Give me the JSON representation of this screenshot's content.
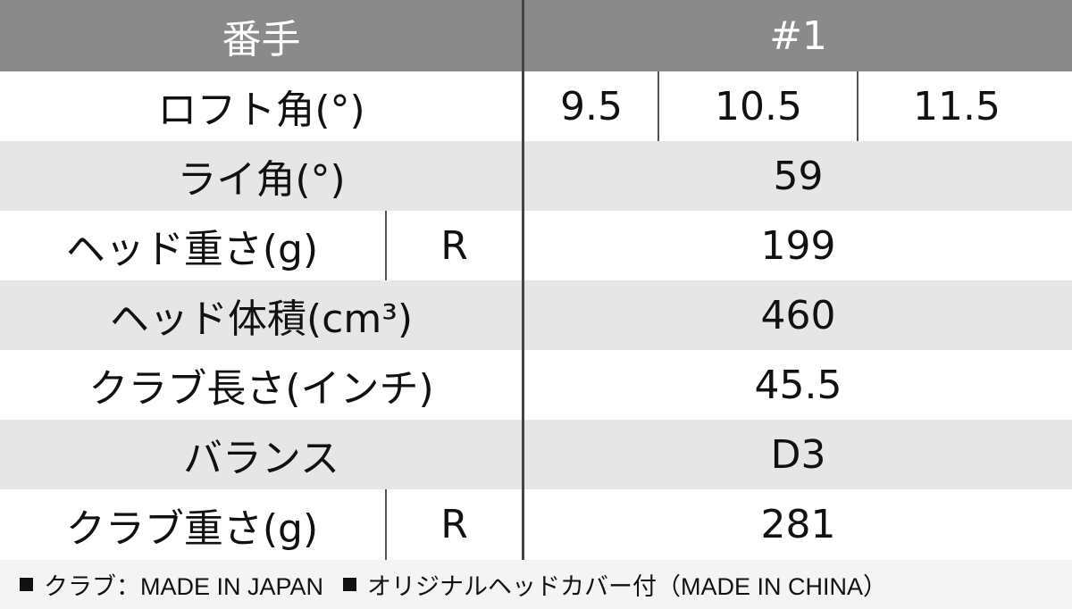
{
  "header": {
    "label": "番手",
    "value": "#1"
  },
  "rows": [
    {
      "label": "ロフト角(°)",
      "values": [
        "9.5",
        "10.5",
        "11.5"
      ]
    },
    {
      "label": "ライ角(°)",
      "value": "59"
    },
    {
      "label": "ヘッド重さ(g)",
      "flex": "R",
      "value": "199"
    },
    {
      "label": "ヘッド体積(cm³)",
      "value": "460"
    },
    {
      "label": "クラブ長さ(インチ)",
      "value": "45.5"
    },
    {
      "label": "バランス",
      "value": "D3"
    },
    {
      "label": "クラブ重さ(g)",
      "flex": "R",
      "value": "281"
    }
  ],
  "footer": {
    "note1": "クラブ：MADE IN JAPAN",
    "note2": "オリジナルヘッドカバー付（MADE IN CHINA）"
  }
}
